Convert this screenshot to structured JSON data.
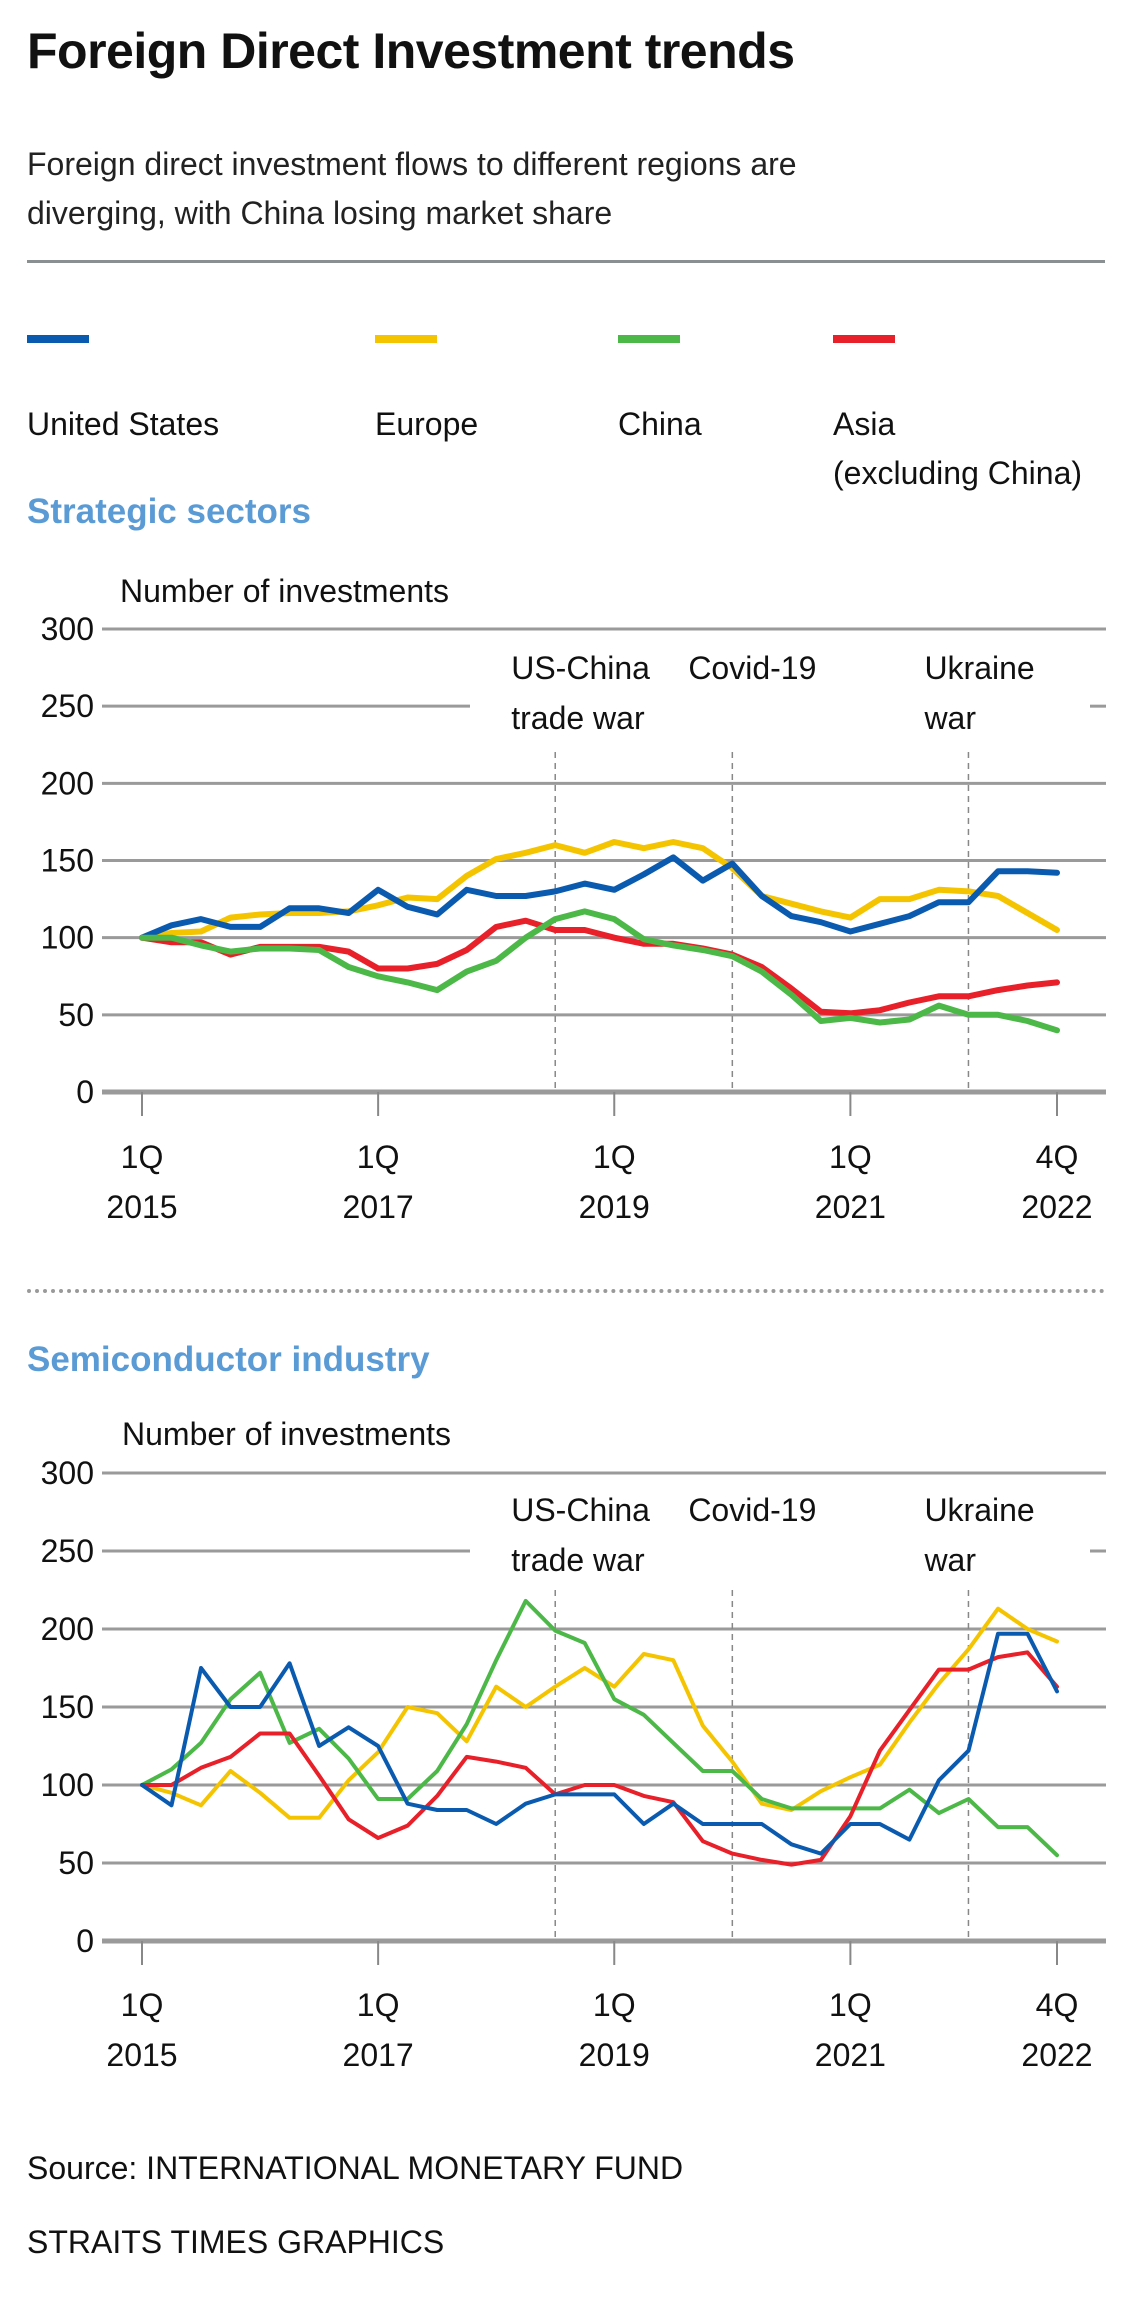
{
  "title": "Foreign Direct Investment trends",
  "subtitle": [
    "Foreign direct investment flows to different regions are",
    "diverging, with China losing market share"
  ],
  "legend": [
    {
      "label": "United States",
      "color": "#0a5bb0"
    },
    {
      "label": "Europe",
      "color": "#f5c400"
    },
    {
      "label": "China",
      "color": "#4cb847"
    },
    {
      "label": "Asia",
      "label2": "(excluding China)",
      "color": "#e8202a"
    }
  ],
  "source": "Source: INTERNATIONAL MONETARY FUND",
  "credit": "STRAITS TIMES GRAPHICS",
  "chart_data": [
    {
      "type": "line",
      "title": "Strategic sectors",
      "ylabel": "Number of investments",
      "ylim": [
        0,
        300
      ],
      "yticks": [
        0,
        50,
        100,
        150,
        200,
        250,
        300
      ],
      "grid": true,
      "x": "quarterly, 1Q 2015 to 4Q 2022",
      "xticks": [
        {
          "q": "1Q",
          "y": "2015",
          "i": 0
        },
        {
          "q": "1Q",
          "y": "2017",
          "i": 8
        },
        {
          "q": "1Q",
          "y": "2019",
          "i": 16
        },
        {
          "q": "1Q",
          "y": "2021",
          "i": 24
        },
        {
          "q": "4Q",
          "y": "2022",
          "i": 31
        }
      ],
      "events": [
        {
          "l1": "US-China",
          "l2": "trade war",
          "i": 14
        },
        {
          "l1": "Covid-19",
          "l2": "",
          "i": 20
        },
        {
          "l1": "Ukraine",
          "l2": "war",
          "i": 28
        }
      ],
      "series": [
        {
          "name": "Europe",
          "color": "#f5c400",
          "values": [
            100,
            103,
            104,
            113,
            115,
            116,
            116,
            117,
            121,
            126,
            125,
            140,
            151,
            155,
            160,
            155,
            162,
            158,
            162,
            158,
            145,
            127,
            122,
            117,
            113,
            125,
            125,
            131,
            130,
            127,
            116,
            105
          ]
        },
        {
          "name": "United States",
          "color": "#0a5bb0",
          "values": [
            100,
            108,
            112,
            107,
            107,
            119,
            119,
            116,
            131,
            120,
            115,
            131,
            127,
            127,
            130,
            135,
            131,
            141,
            152,
            137,
            148,
            127,
            114,
            110,
            104,
            109,
            114,
            123,
            123,
            143,
            143,
            142
          ]
        },
        {
          "name": "Asia (excluding China)",
          "color": "#e8202a",
          "values": [
            100,
            97,
            97,
            89,
            94,
            94,
            94,
            91,
            80,
            80,
            83,
            92,
            107,
            111,
            105,
            105,
            100,
            96,
            96,
            93,
            89,
            81,
            67,
            52,
            51,
            53,
            58,
            62,
            62,
            66,
            69,
            71
          ]
        },
        {
          "name": "China",
          "color": "#4cb847",
          "values": [
            100,
            100,
            95,
            91,
            93,
            93,
            92,
            81,
            75,
            71,
            66,
            78,
            85,
            100,
            112,
            117,
            112,
            99,
            95,
            92,
            88,
            78,
            63,
            46,
            48,
            45,
            47,
            56,
            50,
            50,
            46,
            40
          ]
        }
      ]
    },
    {
      "type": "line",
      "title": "Semiconductor industry",
      "ylabel": "Number of investments",
      "ylim": [
        0,
        300
      ],
      "yticks": [
        0,
        50,
        100,
        150,
        200,
        250,
        300
      ],
      "grid": true,
      "x": "quarterly, 1Q 2015 to 4Q 2022",
      "xticks": [
        {
          "q": "1Q",
          "y": "2015",
          "i": 0
        },
        {
          "q": "1Q",
          "y": "2017",
          "i": 8
        },
        {
          "q": "1Q",
          "y": "2019",
          "i": 16
        },
        {
          "q": "1Q",
          "y": "2021",
          "i": 24
        },
        {
          "q": "4Q",
          "y": "2022",
          "i": 31
        }
      ],
      "events": [
        {
          "l1": "US-China",
          "l2": "trade war",
          "i": 14
        },
        {
          "l1": "Covid-19",
          "l2": "",
          "i": 20
        },
        {
          "l1": "Ukraine",
          "l2": "war",
          "i": 28
        }
      ],
      "series": [
        {
          "name": "Europe",
          "color": "#f5c400",
          "values": [
            100,
            95,
            87,
            109,
            95,
            79,
            79,
            103,
            121,
            150,
            146,
            128,
            163,
            150,
            163,
            175,
            163,
            184,
            180,
            138,
            115,
            88,
            84,
            96,
            105,
            113,
            140,
            165,
            187,
            213,
            200,
            192
          ]
        },
        {
          "name": "China",
          "color": "#4cb847",
          "values": [
            100,
            110,
            127,
            155,
            172,
            127,
            136,
            117,
            91,
            91,
            109,
            139,
            180,
            218,
            199,
            191,
            155,
            145,
            127,
            109,
            109,
            91,
            85,
            85,
            85,
            85,
            97,
            82,
            91,
            73,
            73,
            55
          ]
        },
        {
          "name": "Asia (excluding China)",
          "color": "#e8202a",
          "values": [
            100,
            100,
            111,
            118,
            133,
            133,
            106,
            78,
            66,
            74,
            93,
            118,
            115,
            111,
            94,
            100,
            100,
            93,
            89,
            64,
            56,
            52,
            49,
            52,
            80,
            122,
            148,
            174,
            174,
            182,
            185,
            163
          ]
        },
        {
          "name": "United States",
          "color": "#0a5bb0",
          "values": [
            100,
            87,
            175,
            150,
            150,
            178,
            125,
            137,
            125,
            88,
            84,
            84,
            75,
            88,
            94,
            94,
            94,
            75,
            88,
            75,
            75,
            75,
            62,
            56,
            75,
            75,
            65,
            103,
            122,
            197,
            197,
            160
          ]
        }
      ]
    }
  ]
}
